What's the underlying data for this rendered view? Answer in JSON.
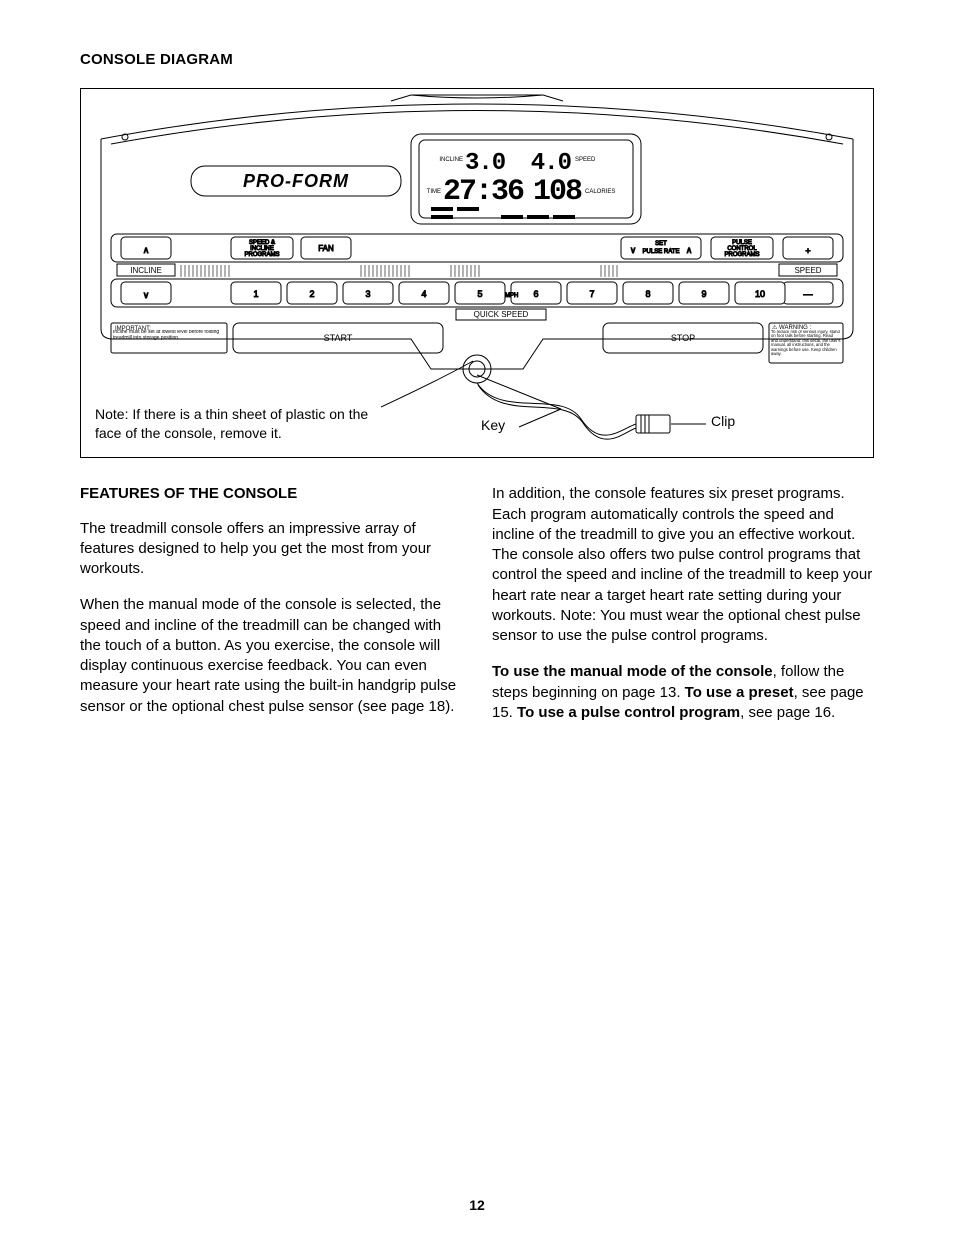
{
  "heading_diagram": "CONSOLE DIAGRAM",
  "heading_features": "FEATURES OF THE CONSOLE",
  "page_number": "12",
  "diagram": {
    "type": "infographic",
    "background_color": "#ffffff",
    "stroke_color": "#000000",
    "brand_text": "PRO-FORM",
    "display": {
      "incline_label": "INCLINE",
      "incline_value": "3.0",
      "speed_label": "SPEED",
      "speed_value": "4.0",
      "time_label": "TIME",
      "time_value": "27:36",
      "calories_label": "CALORIES",
      "calories_value": "108"
    },
    "button_row_top": [
      {
        "label": "∧",
        "sub": ""
      },
      {
        "label": "SPEED &\nINCLINE\nPROGRAMS",
        "sub": ""
      },
      {
        "label": "FAN",
        "sub": ""
      },
      {
        "label": "∨  SET\nPULSE RATE  ∧",
        "sub": ""
      },
      {
        "label": "PULSE\nCONTROL\nPROGRAMS",
        "sub": ""
      },
      {
        "label": "+",
        "sub": ""
      }
    ],
    "incline_side_label": "INCLINE",
    "speed_side_label": "SPEED",
    "quick_speed_numbers": [
      "1",
      "2",
      "3",
      "4",
      "5",
      "6",
      "7",
      "8",
      "9",
      "10"
    ],
    "quick_speed_mph": "MPH",
    "quick_speed_label": "QUICK SPEED",
    "button_row_bottom_left_down": "∨",
    "button_row_bottom_right_minus": "—",
    "important_label": "IMPORTANT:",
    "important_text": "Incline must be set at lowest level before folding treadmill into storage position.",
    "warning_label": "⚠ WARNING :",
    "warning_text": "To reduce risk of serious injury, stand on foot rails before starting. Read and understand: this decal, the user's manual, all instructions, and the warnings before use. Keep children away.",
    "start_label": "START",
    "stop_label": "STOP",
    "note_text": "Note: If there is a thin sheet of plastic on the face of the console, remove it.",
    "key_label": "Key",
    "clip_label": "Clip"
  },
  "body": {
    "col1_p1": "The treadmill console offers an impressive array of features designed to help you get the most from your workouts.",
    "col1_p2": "When the manual mode of the console is selected, the speed and incline of the treadmill can be changed with the touch of a button. As you exercise, the console will display continuous exercise feedback. You can even measure your heart rate using the built-in handgrip pulse sensor or the optional chest pulse sensor (see page 18).",
    "col2_p1": "In addition, the console features six preset programs. Each program automatically controls the speed and incline of the treadmill to give you an effective workout. The console also offers two pulse control programs that control the speed and incline of the treadmill to keep your heart rate near a target heart rate setting during your workouts. Note: You must wear the optional chest pulse sensor to use the pulse control programs.",
    "col2_p2_a": "To use the manual mode of the console",
    "col2_p2_b": ", follow the steps beginning on page 13. ",
    "col2_p2_c": "To use a preset",
    "col2_p2_d": ", see page 15. ",
    "col2_p2_e": "To use a pulse control program",
    "col2_p2_f": ", see page 16."
  }
}
